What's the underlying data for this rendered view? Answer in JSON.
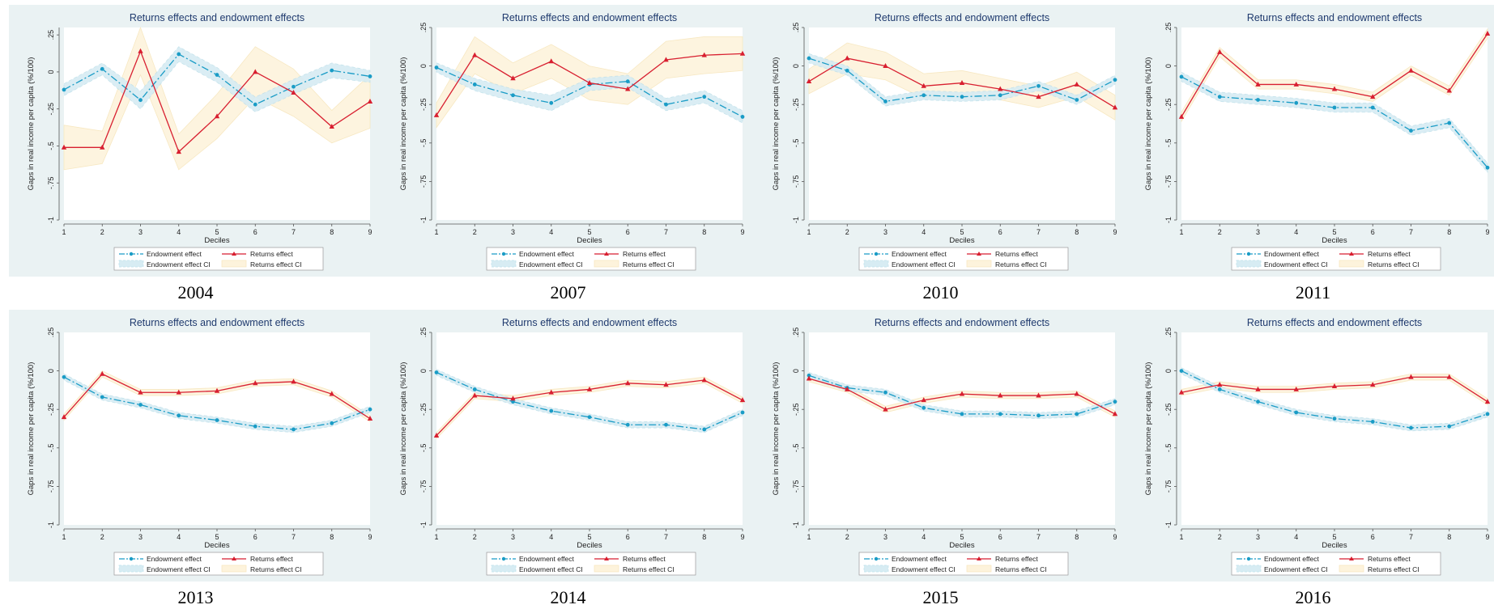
{
  "figure_ytitle": "Gaps in real income per capita (%/100)",
  "figure_xtitle": "Deciles",
  "figure_title": "Returns effects and endowment effects",
  "legend": {
    "endowment": "Endowment effect",
    "returns": "Returns effect",
    "endowment_ci": "Endowment effect CI",
    "returns_ci": "Returns effect CI"
  },
  "colors": {
    "endowment": "#1a9cc6",
    "returns": "#d81f30",
    "endowment_ci": "#d7ecf3",
    "returns_ci": "#fdf3dc",
    "panel_bg": "#eaf2f3"
  },
  "chart_data": [
    {
      "type": "line",
      "label": "2004",
      "title": "Returns effects and endowment effects",
      "xlabel": "Deciles",
      "ylabel": "Gaps in real income per capita (%/100)",
      "x": [
        1,
        2,
        3,
        4,
        5,
        6,
        7,
        8,
        9
      ],
      "xticks": [
        "1",
        "2",
        "3",
        "4",
        "5",
        "6",
        "7",
        "8",
        "9"
      ],
      "yticks": [
        ".25",
        "0",
        "-.25",
        "-.5",
        "-.75",
        "-1"
      ],
      "ylim": [
        -1,
        0.3
      ],
      "series": [
        {
          "name": "Endowment effect",
          "values": [
            -0.12,
            0.02,
            -0.19,
            0.12,
            -0.02,
            -0.22,
            -0.1,
            0.01,
            -0.03
          ]
        },
        {
          "name": "Returns effect",
          "values": [
            -0.51,
            -0.51,
            0.14,
            -0.54,
            -0.3,
            0.0,
            -0.14,
            -0.37,
            -0.2
          ]
        }
      ],
      "ci": {
        "Endowment effect CI": {
          "lower": [
            -0.16,
            -0.02,
            -0.25,
            0.07,
            -0.07,
            -0.27,
            -0.15,
            -0.04,
            -0.07
          ],
          "upper": [
            -0.08,
            0.06,
            -0.13,
            0.17,
            0.03,
            -0.17,
            -0.05,
            0.06,
            0.01
          ]
        },
        "Returns effect CI": {
          "lower": [
            -0.66,
            -0.62,
            -0.02,
            -0.66,
            -0.45,
            -0.17,
            -0.3,
            -0.48,
            -0.38
          ],
          "upper": [
            -0.36,
            -0.4,
            0.3,
            -0.42,
            -0.15,
            0.17,
            0.02,
            -0.26,
            -0.02
          ]
        }
      }
    },
    {
      "type": "line",
      "label": "2007",
      "title": "Returns effects and endowment effects",
      "xlabel": "Deciles",
      "ylabel": "Gaps in real income per capita (%/100)",
      "x": [
        1,
        2,
        3,
        4,
        5,
        6,
        7,
        8,
        9
      ],
      "xticks": [
        "1",
        "2",
        "3",
        "4",
        "5",
        "6",
        "7",
        "8",
        "9"
      ],
      "yticks": [
        ".25",
        "0",
        "-.25",
        "-.5",
        "-.75",
        "-1"
      ],
      "ylim": [
        -1,
        0.25
      ],
      "series": [
        {
          "name": "Endowment effect",
          "values": [
            -0.01,
            -0.12,
            -0.19,
            -0.24,
            -0.12,
            -0.1,
            -0.25,
            -0.2,
            -0.33
          ]
        },
        {
          "name": "Returns effect",
          "values": [
            -0.32,
            0.07,
            -0.08,
            0.03,
            -0.11,
            -0.15,
            0.04,
            0.07,
            0.08
          ]
        }
      ],
      "ci": {
        "Endowment effect CI": {
          "lower": [
            -0.04,
            -0.16,
            -0.23,
            -0.29,
            -0.16,
            -0.14,
            -0.29,
            -0.24,
            -0.37
          ],
          "upper": [
            0.02,
            -0.08,
            -0.15,
            -0.19,
            -0.08,
            -0.06,
            -0.21,
            -0.16,
            -0.29
          ]
        },
        "Returns effect CI": {
          "lower": [
            -0.4,
            -0.05,
            -0.18,
            -0.08,
            -0.22,
            -0.25,
            -0.08,
            -0.05,
            -0.03
          ],
          "upper": [
            -0.24,
            0.19,
            0.02,
            0.14,
            0.0,
            -0.05,
            0.16,
            0.19,
            0.19
          ]
        }
      }
    },
    {
      "type": "line",
      "label": "2010",
      "title": "Returns effects and endowment effects",
      "xlabel": "Deciles",
      "ylabel": "Gaps in real income per capita (%/100)",
      "x": [
        1,
        2,
        3,
        4,
        5,
        6,
        7,
        8,
        9
      ],
      "xticks": [
        "1",
        "2",
        "3",
        "4",
        "5",
        "6",
        "7",
        "8",
        "9"
      ],
      "yticks": [
        ".25",
        "0",
        "-.25",
        "-.5",
        "-.75",
        "-1"
      ],
      "ylim": [
        -1,
        0.25
      ],
      "series": [
        {
          "name": "Endowment effect",
          "values": [
            0.05,
            -0.03,
            -0.23,
            -0.19,
            -0.2,
            -0.19,
            -0.13,
            -0.22,
            -0.09
          ]
        },
        {
          "name": "Returns effect",
          "values": [
            -0.1,
            0.05,
            0.0,
            -0.13,
            -0.11,
            -0.15,
            -0.2,
            -0.12,
            -0.27
          ]
        }
      ],
      "ci": {
        "Endowment effect CI": {
          "lower": [
            0.02,
            -0.06,
            -0.26,
            -0.22,
            -0.23,
            -0.22,
            -0.16,
            -0.25,
            -0.12
          ],
          "upper": [
            0.08,
            0.0,
            -0.2,
            -0.16,
            -0.17,
            -0.16,
            -0.1,
            -0.19,
            -0.06
          ]
        },
        "Returns effect CI": {
          "lower": [
            -0.18,
            -0.05,
            -0.09,
            -0.21,
            -0.19,
            -0.22,
            -0.27,
            -0.2,
            -0.35
          ],
          "upper": [
            -0.02,
            0.15,
            0.09,
            -0.05,
            -0.03,
            -0.08,
            -0.13,
            -0.04,
            -0.19
          ]
        }
      }
    },
    {
      "type": "line",
      "label": "2011",
      "title": "Returns effects and endowment effects",
      "xlabel": "Deciles",
      "ylabel": "Gaps in real income per capita (%/100)",
      "x": [
        1,
        2,
        3,
        4,
        5,
        6,
        7,
        8,
        9
      ],
      "xticks": [
        "1",
        "2",
        "3",
        "4",
        "5",
        "6",
        "7",
        "8",
        "9"
      ],
      "yticks": [
        ".25",
        "0",
        "-.25",
        "-.5",
        "-.75",
        "-1"
      ],
      "ylim": [
        -1,
        0.25
      ],
      "series": [
        {
          "name": "Endowment effect",
          "values": [
            -0.07,
            -0.2,
            -0.22,
            -0.24,
            -0.27,
            -0.27,
            -0.42,
            -0.37,
            -0.66
          ]
        },
        {
          "name": "Returns effect",
          "values": [
            -0.33,
            0.09,
            -0.12,
            -0.12,
            -0.15,
            -0.2,
            -0.03,
            -0.16,
            0.21
          ]
        }
      ],
      "ci": {
        "Endowment effect CI": {
          "lower": [
            -0.1,
            -0.23,
            -0.25,
            -0.27,
            -0.3,
            -0.3,
            -0.45,
            -0.4,
            -0.69
          ],
          "upper": [
            -0.04,
            -0.17,
            -0.19,
            -0.21,
            -0.24,
            -0.24,
            -0.39,
            -0.34,
            -0.63
          ]
        },
        "Returns effect CI": {
          "lower": [
            -0.36,
            0.06,
            -0.15,
            -0.15,
            -0.18,
            -0.23,
            -0.06,
            -0.19,
            0.18
          ],
          "upper": [
            -0.3,
            0.12,
            -0.09,
            -0.09,
            -0.12,
            -0.17,
            0.0,
            -0.13,
            0.24
          ]
        }
      }
    },
    {
      "type": "line",
      "label": "2013",
      "title": "Returns effects and endowment effects",
      "xlabel": "Deciles",
      "ylabel": "Gaps in real income per capita (%/100)",
      "x": [
        1,
        2,
        3,
        4,
        5,
        6,
        7,
        8,
        9
      ],
      "xticks": [
        "1",
        "2",
        "3",
        "4",
        "5",
        "6",
        "7",
        "8",
        "9"
      ],
      "yticks": [
        ".25",
        "0",
        "-.25",
        "-.5",
        "-.75",
        "-1"
      ],
      "ylim": [
        -1,
        0.25
      ],
      "series": [
        {
          "name": "Endowment effect",
          "values": [
            -0.04,
            -0.17,
            -0.22,
            -0.29,
            -0.32,
            -0.36,
            -0.38,
            -0.34,
            -0.25
          ]
        },
        {
          "name": "Returns effect",
          "values": [
            -0.3,
            -0.02,
            -0.14,
            -0.14,
            -0.13,
            -0.08,
            -0.07,
            -0.15,
            -0.31
          ]
        }
      ],
      "ci": {
        "Endowment effect CI": {
          "lower": [
            -0.06,
            -0.19,
            -0.24,
            -0.31,
            -0.34,
            -0.38,
            -0.4,
            -0.36,
            -0.27
          ],
          "upper": [
            -0.02,
            -0.15,
            -0.2,
            -0.27,
            -0.3,
            -0.34,
            -0.36,
            -0.32,
            -0.23
          ]
        },
        "Returns effect CI": {
          "lower": [
            -0.32,
            -0.04,
            -0.16,
            -0.16,
            -0.15,
            -0.1,
            -0.09,
            -0.17,
            -0.33
          ],
          "upper": [
            -0.28,
            0.0,
            -0.12,
            -0.12,
            -0.11,
            -0.06,
            -0.05,
            -0.13,
            -0.29
          ]
        }
      }
    },
    {
      "type": "line",
      "label": "2014",
      "title": "Returns effects and endowment effects",
      "xlabel": "Deciles",
      "ylabel": "Gaps in real income per capita (%/100)",
      "x": [
        1,
        2,
        3,
        4,
        5,
        6,
        7,
        8,
        9
      ],
      "xticks": [
        "1",
        "2",
        "3",
        "4",
        "5",
        "6",
        "7",
        "8",
        "9"
      ],
      "yticks": [
        ".25",
        "0",
        "-.25",
        "-.5",
        "-.75",
        "-1"
      ],
      "ylim": [
        -1,
        0.25
      ],
      "series": [
        {
          "name": "Endowment effect",
          "values": [
            -0.01,
            -0.12,
            -0.2,
            -0.26,
            -0.3,
            -0.35,
            -0.35,
            -0.38,
            -0.27
          ]
        },
        {
          "name": "Returns effect",
          "values": [
            -0.42,
            -0.16,
            -0.18,
            -0.14,
            -0.12,
            -0.08,
            -0.09,
            -0.06,
            -0.19
          ]
        }
      ],
      "ci": {
        "Endowment effect CI": {
          "lower": [
            -0.03,
            -0.14,
            -0.22,
            -0.28,
            -0.32,
            -0.37,
            -0.37,
            -0.4,
            -0.29
          ],
          "upper": [
            0.01,
            -0.1,
            -0.18,
            -0.24,
            -0.28,
            -0.33,
            -0.33,
            -0.36,
            -0.25
          ]
        },
        "Returns effect CI": {
          "lower": [
            -0.44,
            -0.18,
            -0.2,
            -0.16,
            -0.14,
            -0.1,
            -0.11,
            -0.08,
            -0.21
          ],
          "upper": [
            -0.4,
            -0.14,
            -0.16,
            -0.12,
            -0.1,
            -0.06,
            -0.07,
            -0.04,
            -0.17
          ]
        }
      }
    },
    {
      "type": "line",
      "label": "2015",
      "title": "Returns effects and endowment effects",
      "xlabel": "Deciles",
      "ylabel": "Gaps in real income per capita (%/100)",
      "x": [
        1,
        2,
        3,
        4,
        5,
        6,
        7,
        8,
        9
      ],
      "xticks": [
        "1",
        "2",
        "3",
        "4",
        "5",
        "6",
        "7",
        "8",
        "9"
      ],
      "yticks": [
        ".25",
        "0",
        "-.25",
        "-.5",
        "-.75",
        "-1"
      ],
      "ylim": [
        -1,
        0.25
      ],
      "series": [
        {
          "name": "Endowment effect",
          "values": [
            -0.03,
            -0.11,
            -0.14,
            -0.24,
            -0.28,
            -0.28,
            -0.29,
            -0.28,
            -0.2
          ]
        },
        {
          "name": "Returns effect",
          "values": [
            -0.05,
            -0.12,
            -0.25,
            -0.19,
            -0.15,
            -0.16,
            -0.16,
            -0.15,
            -0.28
          ]
        }
      ],
      "ci": {
        "Endowment effect CI": {
          "lower": [
            -0.05,
            -0.13,
            -0.16,
            -0.26,
            -0.3,
            -0.3,
            -0.31,
            -0.3,
            -0.22
          ],
          "upper": [
            -0.01,
            -0.09,
            -0.12,
            -0.22,
            -0.26,
            -0.26,
            -0.27,
            -0.26,
            -0.18
          ]
        },
        "Returns effect CI": {
          "lower": [
            -0.07,
            -0.14,
            -0.27,
            -0.21,
            -0.17,
            -0.18,
            -0.18,
            -0.17,
            -0.3
          ],
          "upper": [
            -0.03,
            -0.1,
            -0.23,
            -0.17,
            -0.13,
            -0.14,
            -0.14,
            -0.13,
            -0.26
          ]
        }
      }
    },
    {
      "type": "line",
      "label": "2016",
      "title": "Returns effects and endowment effects",
      "xlabel": "Deciles",
      "ylabel": "Gaps in real income per capita (%/100)",
      "x": [
        1,
        2,
        3,
        4,
        5,
        6,
        7,
        8,
        9
      ],
      "xticks": [
        "1",
        "2",
        "3",
        "4",
        "5",
        "6",
        "7",
        "8",
        "9"
      ],
      "yticks": [
        ".25",
        "0",
        "-.25",
        "-.5",
        "-.75",
        "-1"
      ],
      "ylim": [
        -1,
        0.25
      ],
      "series": [
        {
          "name": "Endowment effect",
          "values": [
            0.0,
            -0.12,
            -0.2,
            -0.27,
            -0.31,
            -0.33,
            -0.37,
            -0.36,
            -0.28
          ]
        },
        {
          "name": "Returns effect",
          "values": [
            -0.14,
            -0.09,
            -0.12,
            -0.12,
            -0.1,
            -0.09,
            -0.04,
            -0.04,
            -0.2
          ]
        }
      ],
      "ci": {
        "Endowment effect CI": {
          "lower": [
            -0.02,
            -0.14,
            -0.22,
            -0.29,
            -0.33,
            -0.35,
            -0.39,
            -0.38,
            -0.3
          ],
          "upper": [
            0.02,
            -0.1,
            -0.18,
            -0.25,
            -0.29,
            -0.31,
            -0.35,
            -0.34,
            -0.26
          ]
        },
        "Returns effect CI": {
          "lower": [
            -0.16,
            -0.11,
            -0.14,
            -0.14,
            -0.12,
            -0.11,
            -0.06,
            -0.06,
            -0.22
          ],
          "upper": [
            -0.12,
            -0.07,
            -0.1,
            -0.1,
            -0.08,
            -0.07,
            -0.02,
            -0.02,
            -0.18
          ]
        }
      }
    }
  ]
}
